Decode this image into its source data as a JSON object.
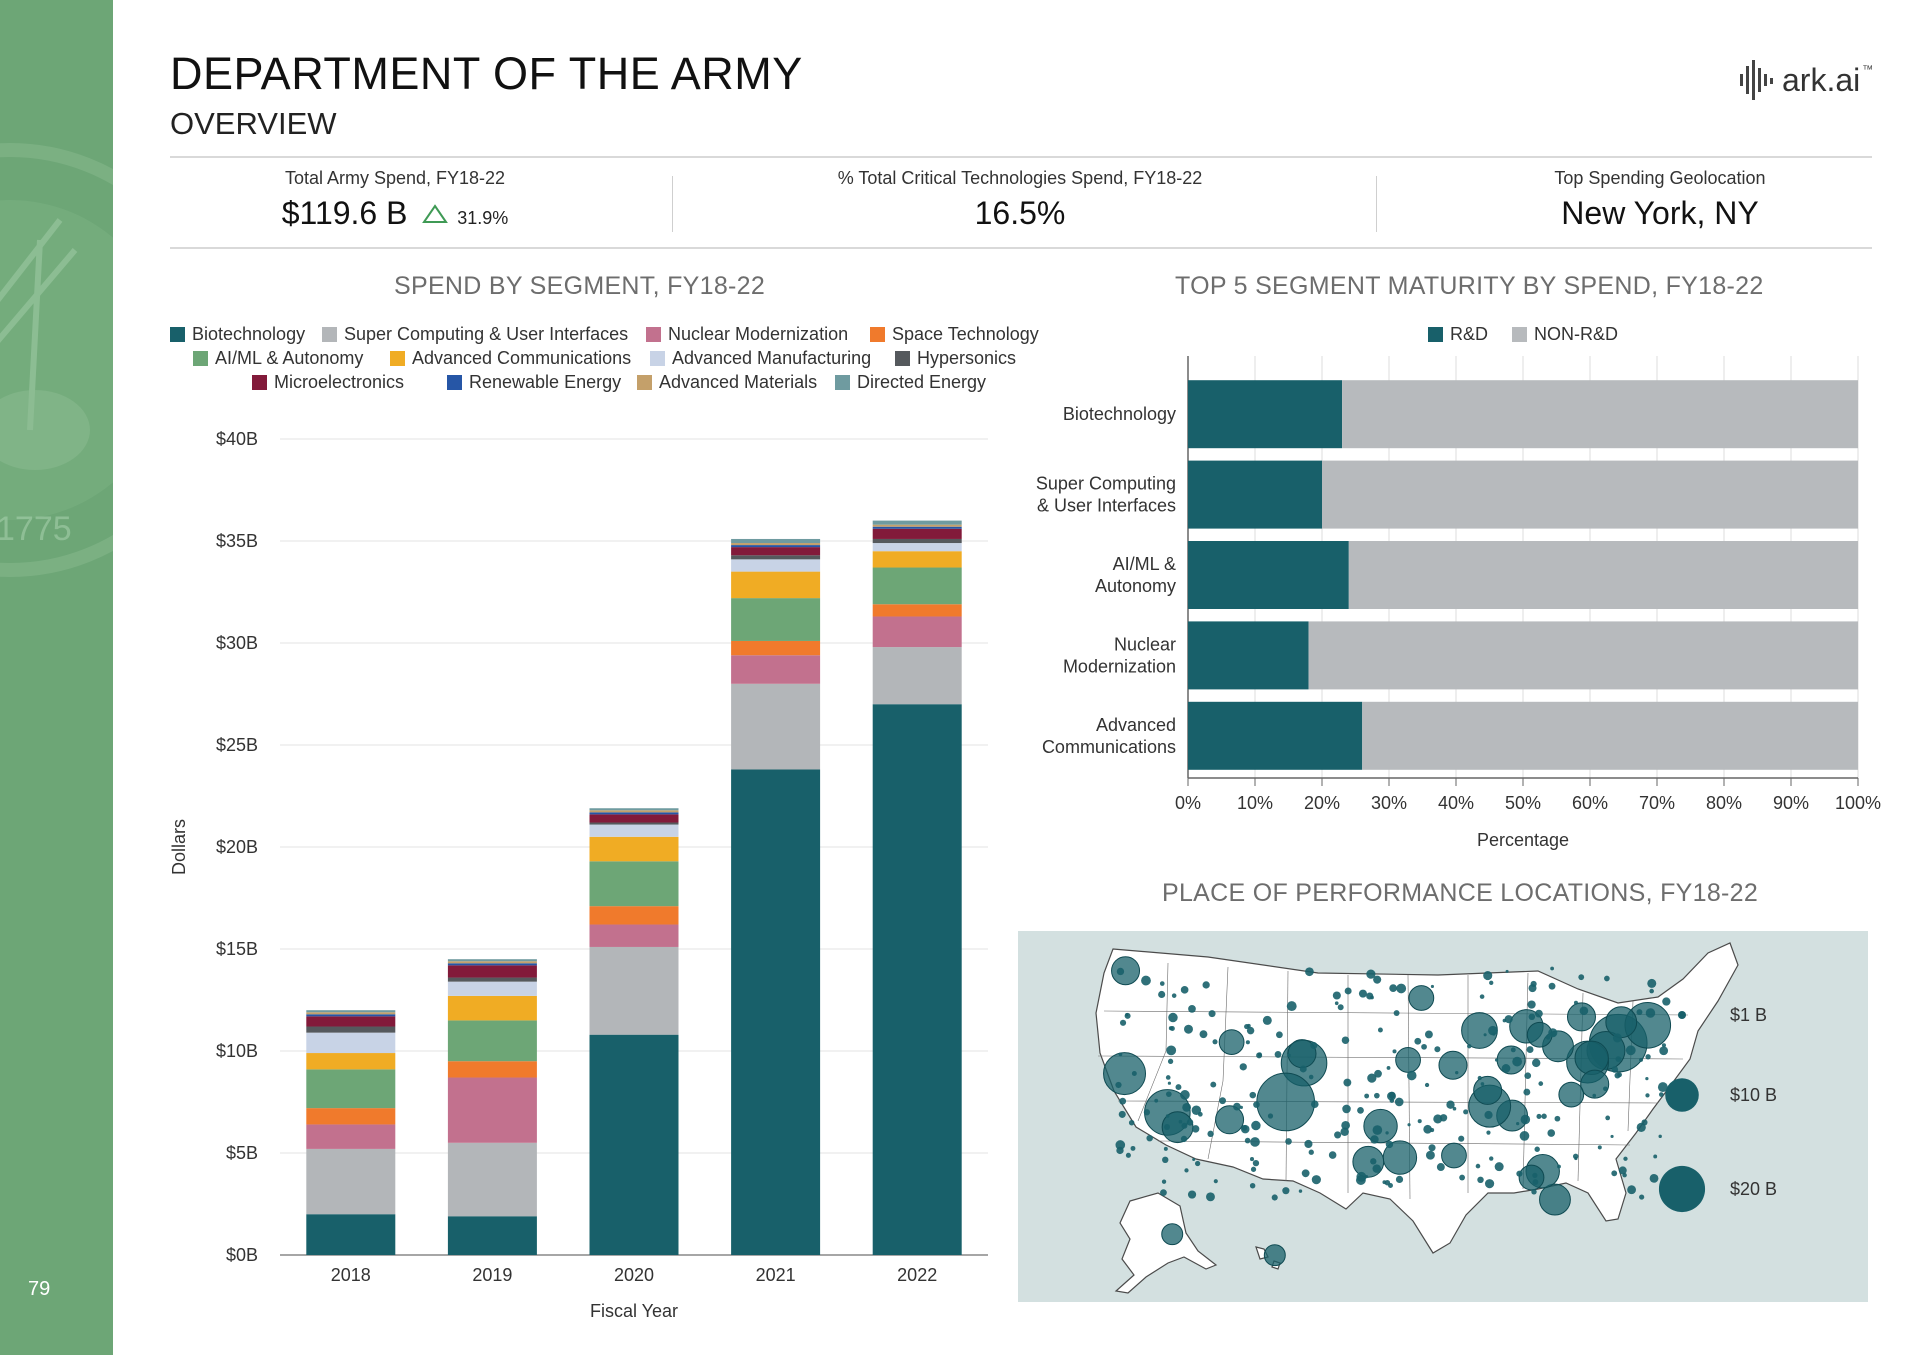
{
  "page": {
    "title": "DEPARTMENT OF THE ARMY",
    "subtitle": "OVERVIEW",
    "page_number": "79",
    "logo_text": "ark.ai",
    "logo_tm": "™",
    "sidebar_color": "#6da676"
  },
  "kpis": [
    {
      "label": "Total Army Spend, FY18-22",
      "value": "$119.6 B",
      "delta": "31.9%",
      "delta_direction": "up"
    },
    {
      "label": "% Total Critical Technologies Spend, FY18-22",
      "value": "16.5%"
    },
    {
      "label": "Top Spending Geolocation",
      "value": "New York, NY"
    }
  ],
  "chart_data": [
    {
      "type": "bar",
      "stacked": true,
      "title": "SPEND BY SEGMENT, FY18-22",
      "xlabel": "Fiscal Year",
      "ylabel": "Dollars",
      "categories": [
        "2018",
        "2019",
        "2020",
        "2021",
        "2022"
      ],
      "ylim": [
        0,
        40
      ],
      "yticks": [
        "$0B",
        "$5B",
        "$10B",
        "$15B",
        "$20B",
        "$25B",
        "$30B",
        "$35B",
        "$40B"
      ],
      "grid": true,
      "legend_position": "top",
      "series": [
        {
          "name": "Biotechnology",
          "color": "#18606a",
          "values": [
            2.0,
            1.9,
            10.8,
            23.8,
            27.0
          ]
        },
        {
          "name": "Super Computing & User Interfaces",
          "color": "#b3b6b9",
          "values": [
            3.2,
            3.6,
            4.3,
            4.2,
            2.8
          ]
        },
        {
          "name": "Nuclear Modernization",
          "color": "#c2718e",
          "values": [
            1.2,
            3.2,
            1.1,
            1.4,
            1.5
          ]
        },
        {
          "name": "Space Technology",
          "color": "#f07a2c",
          "values": [
            0.8,
            0.8,
            0.9,
            0.7,
            0.6
          ]
        },
        {
          "name": "AI/ML & Autonomy",
          "color": "#6da676",
          "values": [
            1.9,
            2.0,
            2.2,
            2.1,
            1.8
          ]
        },
        {
          "name": "Advanced Communications",
          "color": "#f0ac24",
          "values": [
            0.8,
            1.2,
            1.2,
            1.3,
            0.8
          ]
        },
        {
          "name": "Advanced Manufacturing",
          "color": "#c8d3e6",
          "values": [
            1.0,
            0.7,
            0.6,
            0.6,
            0.4
          ]
        },
        {
          "name": "Hypersonics",
          "color": "#55595d",
          "values": [
            0.3,
            0.2,
            0.1,
            0.2,
            0.2
          ]
        },
        {
          "name": "Microelectronics",
          "color": "#821a3a",
          "values": [
            0.5,
            0.6,
            0.4,
            0.4,
            0.5
          ]
        },
        {
          "name": "Renewable Energy",
          "color": "#2656a6",
          "values": [
            0.1,
            0.1,
            0.1,
            0.1,
            0.1
          ]
        },
        {
          "name": "Advanced Materials",
          "color": "#c4a06a",
          "values": [
            0.1,
            0.1,
            0.1,
            0.1,
            0.1
          ]
        },
        {
          "name": "Directed Energy",
          "color": "#6f9ba0",
          "values": [
            0.1,
            0.1,
            0.1,
            0.2,
            0.2
          ]
        }
      ]
    },
    {
      "type": "bar",
      "orientation": "horizontal",
      "stacked": true,
      "title": "TOP 5 SEGMENT MATURITY BY SPEND, FY18-22",
      "xlabel": "Percentage",
      "categories": [
        "Biotechnology",
        "Super Computing & User Interfaces",
        "AI/ML & Autonomy",
        "Nuclear Modernization",
        "Advanced Communications"
      ],
      "category_lines": [
        [
          "Biotechnology"
        ],
        [
          "Super Computing",
          "& User Interfaces"
        ],
        [
          "AI/ML &",
          "Autonomy"
        ],
        [
          "Nuclear",
          "Modernization"
        ],
        [
          "Advanced",
          "Communications"
        ]
      ],
      "xlim": [
        0,
        100
      ],
      "xticks": [
        "0%",
        "10%",
        "20%",
        "30%",
        "40%",
        "50%",
        "60%",
        "70%",
        "80%",
        "90%",
        "100%"
      ],
      "grid": true,
      "legend_position": "top",
      "series": [
        {
          "name": "R&D",
          "color": "#18606a",
          "values": [
            23,
            20,
            24,
            18,
            26
          ]
        },
        {
          "name": "NON-R&D",
          "color": "#b7babd",
          "values": [
            77,
            80,
            76,
            82,
            74
          ]
        }
      ]
    },
    {
      "type": "scatter",
      "subtype": "bubble-map",
      "title": "PLACE OF PERFORMANCE LOCATIONS, FY18-22",
      "legend_position": "right",
      "bubble_color": "#18606a",
      "legend": [
        {
          "label": "$1 B",
          "value": 1
        },
        {
          "label": "$10 B",
          "value": 10
        },
        {
          "label": "$20 B",
          "value": 20
        }
      ],
      "points": [
        {
          "lon": -74.0,
          "lat": 40.7,
          "value": 20
        },
        {
          "lon": -71.1,
          "lat": 42.4,
          "value": 12
        },
        {
          "lon": -75.2,
          "lat": 40.0,
          "value": 8
        },
        {
          "lon": -77.0,
          "lat": 38.9,
          "value": 10
        },
        {
          "lon": -76.6,
          "lat": 39.3,
          "value": 6
        },
        {
          "lon": -73.7,
          "lat": 42.7,
          "value": 5
        },
        {
          "lon": -77.6,
          "lat": 43.2,
          "value": 4
        },
        {
          "lon": -79.9,
          "lat": 40.4,
          "value": 5
        },
        {
          "lon": -83.0,
          "lat": 42.3,
          "value": 6
        },
        {
          "lon": -84.4,
          "lat": 33.8,
          "value": 5
        },
        {
          "lon": -86.6,
          "lat": 34.7,
          "value": 10
        },
        {
          "lon": -87.6,
          "lat": 41.9,
          "value": 7
        },
        {
          "lon": -90.2,
          "lat": 38.6,
          "value": 4
        },
        {
          "lon": -86.8,
          "lat": 36.2,
          "value": 4
        },
        {
          "lon": -97.3,
          "lat": 32.8,
          "value": 6
        },
        {
          "lon": -95.4,
          "lat": 29.8,
          "value": 6
        },
        {
          "lon": -98.5,
          "lat": 29.4,
          "value": 5
        },
        {
          "lon": -104.8,
          "lat": 38.8,
          "value": 12
        },
        {
          "lon": -106.6,
          "lat": 35.1,
          "value": 20
        },
        {
          "lon": -111.9,
          "lat": 40.8,
          "value": 3
        },
        {
          "lon": -122.4,
          "lat": 37.8,
          "value": 10
        },
        {
          "lon": -118.2,
          "lat": 34.1,
          "value": 12
        },
        {
          "lon": -117.2,
          "lat": 32.7,
          "value": 5
        },
        {
          "lon": -122.3,
          "lat": 47.6,
          "value": 4
        },
        {
          "lon": -80.2,
          "lat": 25.8,
          "value": 5
        },
        {
          "lon": -81.4,
          "lat": 28.5,
          "value": 6
        },
        {
          "lon": -82.5,
          "lat": 27.9,
          "value": 3
        },
        {
          "lon": -90.1,
          "lat": 30.0,
          "value": 3
        },
        {
          "lon": -112.1,
          "lat": 33.4,
          "value": 4
        },
        {
          "lon": -76.3,
          "lat": 36.8,
          "value": 4
        },
        {
          "lon": -78.6,
          "lat": 35.8,
          "value": 3
        },
        {
          "lon": -93.3,
          "lat": 45.0,
          "value": 3
        },
        {
          "lon": -84.5,
          "lat": 39.1,
          "value": 4
        },
        {
          "lon": -81.7,
          "lat": 41.5,
          "value": 3
        },
        {
          "lon": -94.6,
          "lat": 39.1,
          "value": 3
        },
        {
          "lon": -105.0,
          "lat": 39.7,
          "value": 4
        },
        {
          "lon": -149.9,
          "lat": 61.2,
          "value": 2
        },
        {
          "lon": -157.9,
          "lat": 21.3,
          "value": 2
        }
      ]
    }
  ]
}
